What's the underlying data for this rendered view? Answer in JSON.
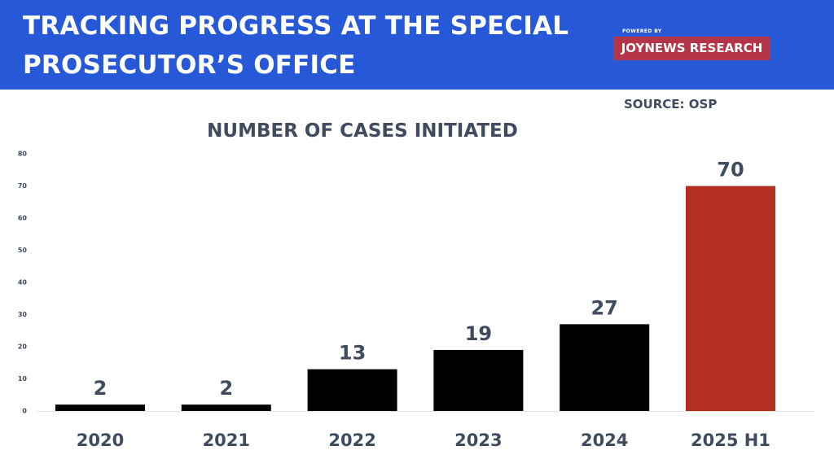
{
  "header": {
    "title": "TRACKING PROGRESS AT THE SPECIAL PROSECUTOR’S OFFICE",
    "powered_by": "POWERED BY",
    "brand": "JOYNEWS RESEARCH",
    "background": "#2758d8",
    "brand_color": "#b53548"
  },
  "source": "SOURCE: OSP",
  "chart_data": {
    "type": "bar",
    "title": "NUMBER OF CASES INITIATED",
    "xlabel": "",
    "ylabel": "",
    "categories": [
      "2020",
      "2021",
      "2022",
      "2023",
      "2024",
      "2025 H1"
    ],
    "values": [
      2,
      2,
      13,
      19,
      27,
      70
    ],
    "data_labels": [
      "2",
      "2",
      "13",
      "19",
      "27",
      "70"
    ],
    "ylim": [
      0,
      80
    ],
    "y_ticks": [
      0,
      10,
      20,
      30,
      40,
      50,
      60,
      70,
      80
    ],
    "grid": false,
    "legend": "none",
    "bar_colors": [
      "#000000",
      "#000000",
      "#000000",
      "#000000",
      "#000000",
      "#b22f22"
    ],
    "text_color": "#414b5f"
  }
}
